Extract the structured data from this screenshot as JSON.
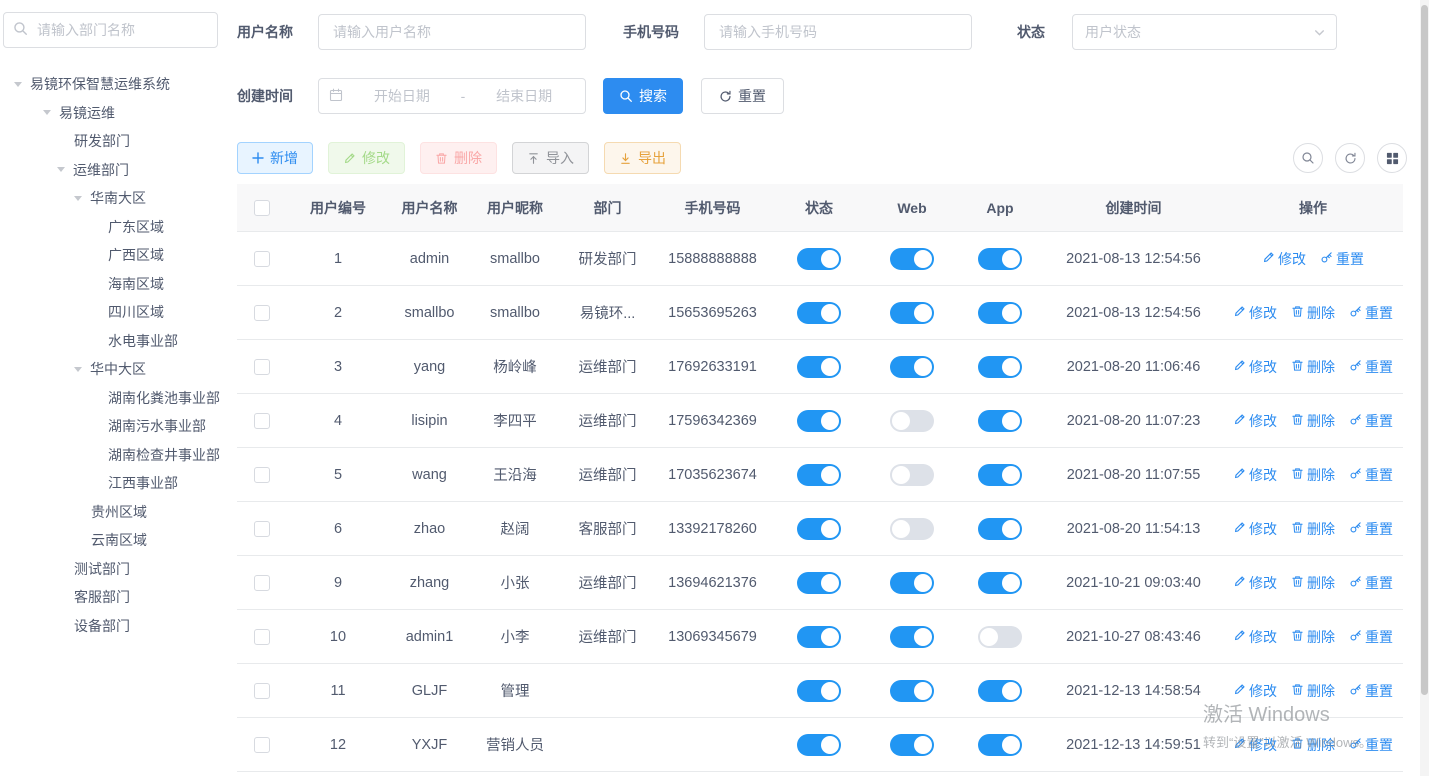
{
  "colors": {
    "primary": "#2d8cf0",
    "switch_on": "#2196f3",
    "switch_off": "#dde1e8",
    "link": "#2d8cf0",
    "success": "#67c23a",
    "danger": "#f56c6c",
    "info": "#909399",
    "warning": "#e6a23c",
    "table_header_bg": "#f8f8f9"
  },
  "sidebar": {
    "search_placeholder": "请输入部门名称",
    "tree": [
      {
        "label": "易镜环保智慧运维系统",
        "level": 0,
        "expandable": true
      },
      {
        "label": "易镜运维",
        "level": 1,
        "expandable": true
      },
      {
        "label": "研发部门",
        "level": 2,
        "expandable": false
      },
      {
        "label": "运维部门",
        "level": 2,
        "expandable": true
      },
      {
        "label": "华南大区",
        "level": 3,
        "expandable": true
      },
      {
        "label": "广东区域",
        "level": 4,
        "expandable": false
      },
      {
        "label": "广西区域",
        "level": 4,
        "expandable": false
      },
      {
        "label": "海南区域",
        "level": 4,
        "expandable": false
      },
      {
        "label": "四川区域",
        "level": 4,
        "expandable": false
      },
      {
        "label": "水电事业部",
        "level": 4,
        "expandable": false
      },
      {
        "label": "华中大区",
        "level": 3,
        "expandable": true
      },
      {
        "label": "湖南化粪池事业部",
        "level": 4,
        "expandable": false
      },
      {
        "label": "湖南污水事业部",
        "level": 4,
        "expandable": false
      },
      {
        "label": "湖南检查井事业部",
        "level": 4,
        "expandable": false
      },
      {
        "label": "江西事业部",
        "level": 4,
        "expandable": false
      },
      {
        "label": "贵州区域",
        "level": 3,
        "expandable": false
      },
      {
        "label": "云南区域",
        "level": 3,
        "expandable": false
      },
      {
        "label": "测试部门",
        "level": 2,
        "expandable": false
      },
      {
        "label": "客服部门",
        "level": 2,
        "expandable": false
      },
      {
        "label": "设备部门",
        "level": 2,
        "expandable": false
      }
    ]
  },
  "filters": {
    "username_label": "用户名称",
    "username_placeholder": "请输入用户名称",
    "phone_label": "手机号码",
    "phone_placeholder": "请输入手机号码",
    "status_label": "状态",
    "status_placeholder": "用户状态",
    "created_label": "创建时间",
    "date_start_placeholder": "开始日期",
    "date_separator": "-",
    "date_end_placeholder": "结束日期",
    "search_button": "搜索",
    "reset_button": "重置"
  },
  "toolbar": {
    "add": "新增",
    "edit": "修改",
    "delete": "删除",
    "import": "导入",
    "export": "导出"
  },
  "table": {
    "columns": [
      "用户编号",
      "用户名称",
      "用户昵称",
      "部门",
      "手机号码",
      "状态",
      "Web",
      "App",
      "创建时间",
      "操作"
    ],
    "ops": {
      "edit": "修改",
      "delete": "删除",
      "reset": "重置"
    },
    "rows": [
      {
        "id": "1",
        "name": "admin",
        "nick": "smallbo",
        "dept": "研发部门",
        "phone": "15888888888",
        "status": true,
        "web": true,
        "app": true,
        "created": "2021-08-13 12:54:56",
        "ops": [
          "edit",
          "reset"
        ]
      },
      {
        "id": "2",
        "name": "smallbo",
        "nick": "smallbo",
        "dept": "易镜环...",
        "phone": "15653695263",
        "status": true,
        "web": true,
        "app": true,
        "created": "2021-08-13 12:54:56",
        "ops": [
          "edit",
          "delete",
          "reset"
        ]
      },
      {
        "id": "3",
        "name": "yang",
        "nick": "杨岭峰",
        "dept": "运维部门",
        "phone": "17692633191",
        "status": true,
        "web": true,
        "app": true,
        "created": "2021-08-20 11:06:46",
        "ops": [
          "edit",
          "delete",
          "reset"
        ]
      },
      {
        "id": "4",
        "name": "lisipin",
        "nick": "李四平",
        "dept": "运维部门",
        "phone": "17596342369",
        "status": true,
        "web": false,
        "app": true,
        "created": "2021-08-20 11:07:23",
        "ops": [
          "edit",
          "delete",
          "reset"
        ]
      },
      {
        "id": "5",
        "name": "wang",
        "nick": "王沿海",
        "dept": "运维部门",
        "phone": "17035623674",
        "status": true,
        "web": false,
        "app": true,
        "created": "2021-08-20 11:07:55",
        "ops": [
          "edit",
          "delete",
          "reset"
        ]
      },
      {
        "id": "6",
        "name": "zhao",
        "nick": "赵阔",
        "dept": "客服部门",
        "phone": "13392178260",
        "status": true,
        "web": false,
        "app": true,
        "created": "2021-08-20 11:54:13",
        "ops": [
          "edit",
          "delete",
          "reset"
        ]
      },
      {
        "id": "9",
        "name": "zhang",
        "nick": "小张",
        "dept": "运维部门",
        "phone": "13694621376",
        "status": true,
        "web": true,
        "app": true,
        "created": "2021-10-21 09:03:40",
        "ops": [
          "edit",
          "delete",
          "reset"
        ]
      },
      {
        "id": "10",
        "name": "admin1",
        "nick": "小李",
        "dept": "运维部门",
        "phone": "13069345679",
        "status": true,
        "web": true,
        "app": false,
        "created": "2021-10-27 08:43:46",
        "ops": [
          "edit",
          "delete",
          "reset"
        ]
      },
      {
        "id": "11",
        "name": "GLJF",
        "nick": "管理",
        "dept": "",
        "phone": "",
        "status": true,
        "web": true,
        "app": true,
        "created": "2021-12-13 14:58:54",
        "ops": [
          "edit",
          "delete",
          "reset"
        ]
      },
      {
        "id": "12",
        "name": "YXJF",
        "nick": "营销人员",
        "dept": "",
        "phone": "",
        "status": true,
        "web": true,
        "app": true,
        "created": "2021-12-13 14:59:51",
        "ops": [
          "edit",
          "delete",
          "reset"
        ]
      }
    ]
  },
  "watermark": {
    "line1": "激活 Windows",
    "line2": "转到“设置”以激活 Windows。"
  }
}
